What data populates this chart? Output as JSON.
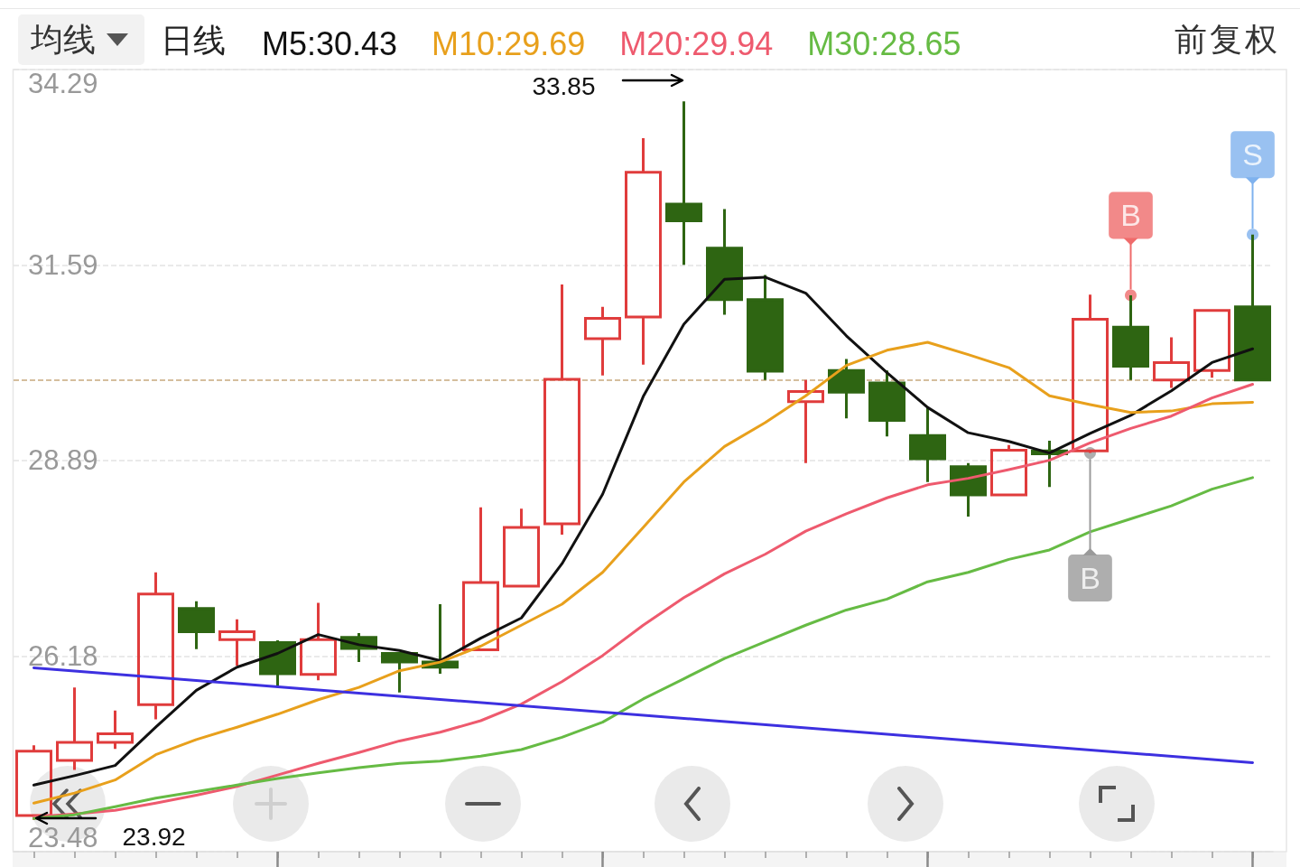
{
  "chart_data": {
    "type": "candlestick",
    "categories": [
      null,
      null,
      null,
      null,
      null,
      null,
      null,
      null,
      null,
      null,
      null,
      null,
      null,
      null,
      null,
      null,
      null,
      null,
      null,
      null,
      null,
      null,
      null,
      null,
      null,
      null,
      null,
      null,
      null,
      null,
      null
    ],
    "ohlc": [
      [
        23.98,
        24.95,
        23.92,
        24.87
      ],
      [
        24.74,
        25.75,
        24.61,
        24.99
      ],
      [
        24.99,
        25.43,
        24.9,
        25.11
      ],
      [
        25.51,
        27.34,
        25.31,
        27.04
      ],
      [
        26.84,
        26.94,
        26.28,
        26.52
      ],
      [
        26.41,
        26.69,
        26.05,
        26.52
      ],
      [
        26.37,
        26.4,
        25.77,
        25.94
      ],
      [
        25.93,
        26.92,
        25.85,
        26.41
      ],
      [
        26.44,
        26.5,
        26.1,
        26.29
      ],
      [
        26.22,
        26.24,
        25.68,
        26.1
      ],
      [
        26.1,
        26.9,
        25.94,
        26.03
      ],
      [
        26.27,
        28.24,
        26.25,
        27.2
      ],
      [
        27.15,
        28.22,
        27.13,
        27.96
      ],
      [
        28.01,
        31.32,
        27.86,
        30.01
      ],
      [
        30.57,
        31.01,
        30.06,
        30.85
      ],
      [
        30.87,
        33.34,
        30.21,
        32.87
      ],
      [
        32.43,
        33.85,
        31.59,
        32.2
      ],
      [
        31.82,
        32.36,
        30.9,
        31.11
      ],
      [
        31.11,
        31.45,
        30.0,
        30.12
      ],
      [
        29.7,
        30.0,
        28.85,
        29.84
      ],
      [
        30.13,
        30.29,
        29.47,
        29.83
      ],
      [
        29.96,
        30.13,
        29.22,
        29.44
      ],
      [
        29.23,
        29.63,
        28.59,
        28.91
      ],
      [
        28.8,
        28.85,
        28.11,
        28.41
      ],
      [
        28.41,
        29.1,
        28.41,
        29.03
      ],
      [
        29.02,
        29.16,
        28.52,
        28.98
      ],
      [
        29.02,
        31.18,
        28.99,
        30.84
      ],
      [
        30.73,
        31.17,
        30.0,
        30.19
      ],
      [
        30.0,
        30.59,
        29.89,
        30.24
      ],
      [
        30.13,
        30.96,
        30.03,
        30.96
      ],
      [
        31.01,
        32.01,
        30.0,
        30.0
      ]
    ],
    "colors": [
      "#e03c3c",
      "#e03c3c",
      "#e03c3c",
      "#e03c3c",
      "#2e6512",
      "#e03c3c",
      "#2e6512",
      "#e03c3c",
      "#2e6512",
      "#2e6512",
      "#2e6512",
      "#e03c3c",
      "#e03c3c",
      "#e03c3c",
      "#e03c3c",
      "#e03c3c",
      "#2e6512",
      "#2e6512",
      "#2e6512",
      "#e03c3c",
      "#2e6512",
      "#2e6512",
      "#2e6512",
      "#2e6512",
      "#e03c3c",
      "#2e6512",
      "#e03c3c",
      "#2e6512",
      "#e03c3c",
      "#e03c3c",
      "#2e6512"
    ],
    "series": [
      {
        "name": "M5:30.43",
        "type": "line",
        "color": "#111111",
        "values": [
          24.4,
          24.53,
          24.67,
          25.2,
          25.71,
          26.03,
          26.22,
          26.48,
          26.34,
          26.26,
          26.12,
          26.43,
          26.71,
          27.46,
          28.42,
          29.77,
          30.77,
          31.39,
          31.42,
          31.2,
          30.61,
          30.1,
          29.62,
          29.27,
          29.15,
          28.99,
          29.26,
          29.51,
          29.85,
          30.24,
          30.43
        ]
      },
      {
        "name": "M10:29.69",
        "type": "line",
        "color": "#e8a01c",
        "values": [
          24.15,
          24.29,
          24.47,
          24.82,
          25.03,
          25.2,
          25.38,
          25.58,
          25.75,
          25.98,
          26.1,
          26.32,
          26.61,
          26.9,
          27.34,
          27.96,
          28.59,
          29.08,
          29.41,
          29.78,
          30.2,
          30.41,
          30.52,
          30.35,
          30.17,
          29.78,
          29.66,
          29.55,
          29.57,
          29.67,
          29.69
        ]
      },
      {
        "name": "M20:29.94",
        "type": "line",
        "color": "#ee5a6e",
        "values": [
          23.96,
          24.0,
          24.05,
          24.15,
          24.26,
          24.38,
          24.54,
          24.7,
          24.85,
          25.01,
          25.13,
          25.29,
          25.52,
          25.83,
          26.19,
          26.61,
          26.99,
          27.32,
          27.59,
          27.91,
          28.15,
          28.37,
          28.55,
          28.64,
          28.76,
          28.89,
          29.13,
          29.33,
          29.5,
          29.75,
          29.94
        ]
      },
      {
        "name": "M30:28.65",
        "type": "line",
        "color": "#66bb44",
        "values": [
          23.94,
          23.99,
          24.1,
          24.22,
          24.31,
          24.4,
          24.49,
          24.57,
          24.64,
          24.7,
          24.73,
          24.8,
          24.89,
          25.06,
          25.27,
          25.59,
          25.87,
          26.15,
          26.38,
          26.61,
          26.82,
          26.97,
          27.21,
          27.34,
          27.52,
          27.65,
          27.9,
          28.08,
          28.26,
          28.49,
          28.65
        ]
      },
      {
        "type": "line",
        "color": "#3d30e0",
        "values": [
          26.02,
          null,
          null,
          null,
          null,
          null,
          null,
          null,
          null,
          null,
          null,
          null,
          null,
          null,
          null,
          null,
          null,
          null,
          null,
          null,
          null,
          null,
          null,
          null,
          null,
          null,
          null,
          null,
          null,
          null,
          24.71
        ]
      },
      {
        "type": "scatter",
        "marker": "circle",
        "values": [
          null,
          null,
          null,
          null,
          null,
          null,
          null,
          null,
          null,
          null,
          null,
          null,
          null,
          null,
          null,
          null,
          null,
          null,
          null,
          null,
          null,
          null,
          null,
          null,
          null,
          null,
          28.99,
          31.17,
          null,
          null,
          32.01
        ],
        "colors": [
          null,
          null,
          null,
          null,
          null,
          null,
          null,
          null,
          null,
          null,
          null,
          null,
          null,
          null,
          null,
          null,
          null,
          null,
          null,
          null,
          null,
          null,
          null,
          null,
          null,
          null,
          "#9a9a9a",
          "#ef6b6b",
          null,
          null,
          "#7fb2ee"
        ],
        "value_labels": [
          null,
          null,
          null,
          null,
          null,
          null,
          null,
          null,
          null,
          null,
          null,
          null,
          null,
          null,
          null,
          null,
          null,
          null,
          null,
          null,
          null,
          null,
          null,
          null,
          null,
          null,
          "B",
          "B",
          null,
          null,
          "S"
        ]
      }
    ],
    "ylim": [
      23.48,
      34.29
    ],
    "yticks": [
      23.48,
      26.18,
      28.89,
      31.59,
      34.29
    ],
    "grid": "y",
    "legend": "top left",
    "legend_title": "均线",
    "tick_labels": "y",
    "ref_lines": [
      {
        "axis": "y",
        "value": 30.0,
        "color": "#c8a97e",
        "line_style": "dashed"
      }
    ],
    "annotations": [
      "日线",
      "前复权",
      "33.85",
      "23.92"
    ]
  }
}
